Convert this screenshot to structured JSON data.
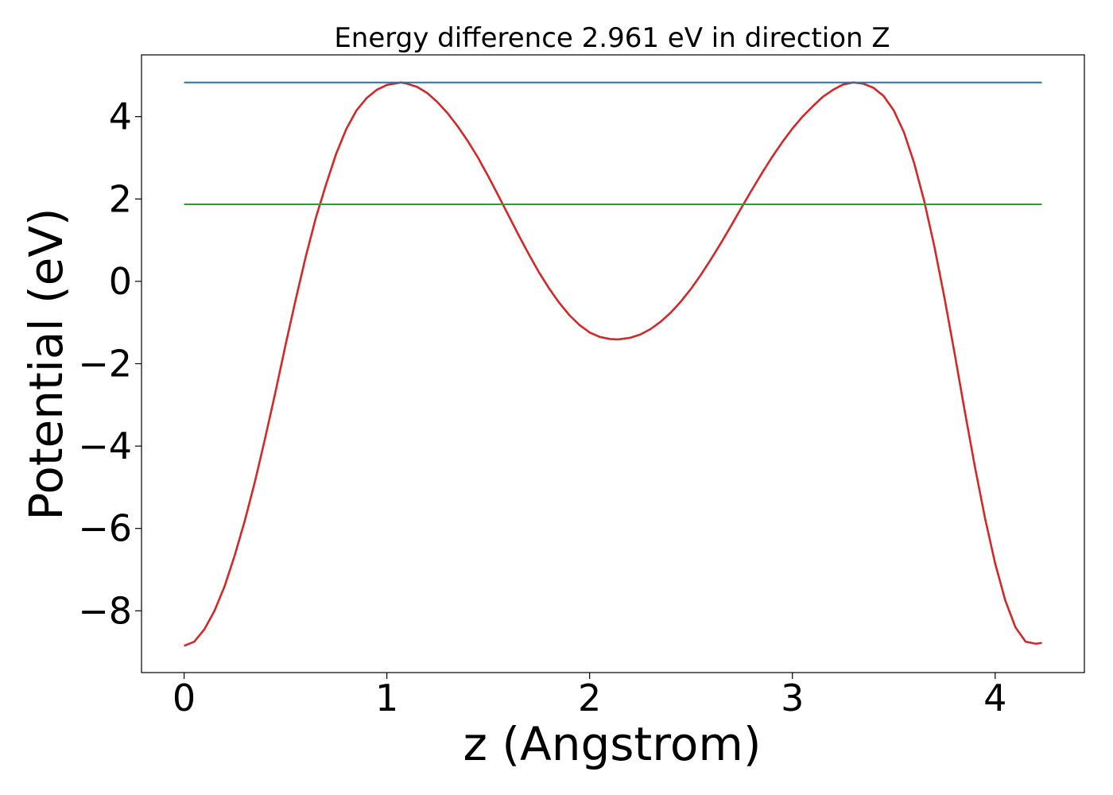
{
  "chart_data": {
    "type": "line",
    "title": "Energy difference 2.961 eV in direction Z",
    "xlabel": "z (Angstrom)",
    "ylabel": "Potential (eV)",
    "xlim": [
      -0.21,
      4.44
    ],
    "ylim": [
      -9.5,
      5.5
    ],
    "xticks": [
      0,
      1,
      2,
      3,
      4
    ],
    "yticks": [
      -8,
      -6,
      -4,
      -2,
      0,
      2,
      4
    ],
    "xtick_labels": [
      "0",
      "1",
      "2",
      "3",
      "4"
    ],
    "ytick_labels": [
      "−8",
      "−6",
      "−4",
      "−2",
      "0",
      "2",
      "4"
    ],
    "grid": false,
    "legend": "none",
    "series": [
      {
        "color": "#d62728",
        "x": [
          0.0,
          0.05,
          0.1,
          0.15,
          0.2,
          0.25,
          0.3,
          0.35,
          0.4,
          0.45,
          0.5,
          0.55,
          0.6,
          0.65,
          0.7,
          0.75,
          0.8,
          0.85,
          0.9,
          0.95,
          1.0,
          1.07,
          1.1,
          1.15,
          1.2,
          1.25,
          1.3,
          1.35,
          1.4,
          1.45,
          1.5,
          1.55,
          1.6,
          1.65,
          1.7,
          1.75,
          1.8,
          1.85,
          1.9,
          1.95,
          2.0,
          2.05,
          2.1,
          2.14,
          2.2,
          2.25,
          2.3,
          2.35,
          2.4,
          2.45,
          2.5,
          2.55,
          2.6,
          2.65,
          2.7,
          2.75,
          2.8,
          2.85,
          2.9,
          2.95,
          3.0,
          3.05,
          3.1,
          3.15,
          3.2,
          3.25,
          3.3,
          3.35,
          3.4,
          3.45,
          3.5,
          3.55,
          3.6,
          3.65,
          3.7,
          3.75,
          3.8,
          3.85,
          3.9,
          3.95,
          4.0,
          4.05,
          4.1,
          4.15,
          4.2,
          4.23
        ],
        "y": [
          -8.85,
          -8.75,
          -8.45,
          -8.0,
          -7.4,
          -6.65,
          -5.8,
          -4.85,
          -3.8,
          -2.7,
          -1.55,
          -0.45,
          0.6,
          1.55,
          2.35,
          3.1,
          3.7,
          4.15,
          4.45,
          4.65,
          4.77,
          4.83,
          4.8,
          4.72,
          4.57,
          4.35,
          4.08,
          3.76,
          3.4,
          3.0,
          2.55,
          2.08,
          1.6,
          1.12,
          0.66,
          0.22,
          -0.17,
          -0.52,
          -0.82,
          -1.06,
          -1.24,
          -1.35,
          -1.4,
          -1.41,
          -1.37,
          -1.29,
          -1.16,
          -0.98,
          -0.76,
          -0.49,
          -0.18,
          0.17,
          0.55,
          0.95,
          1.37,
          1.8,
          2.22,
          2.63,
          3.02,
          3.38,
          3.71,
          4.0,
          4.25,
          4.48,
          4.65,
          4.78,
          4.83,
          4.8,
          4.7,
          4.5,
          4.15,
          3.62,
          2.88,
          1.95,
          0.85,
          -0.4,
          -1.75,
          -3.15,
          -4.5,
          -5.75,
          -6.85,
          -7.75,
          -8.4,
          -8.75,
          -8.8,
          -8.78
        ]
      },
      {
        "color": "#1f77b4",
        "x": [
          0.0,
          4.23
        ],
        "y": [
          4.83,
          4.83
        ]
      },
      {
        "color": "#2ca02c",
        "x": [
          0.0,
          4.23
        ],
        "y": [
          1.87,
          1.87
        ]
      }
    ]
  }
}
